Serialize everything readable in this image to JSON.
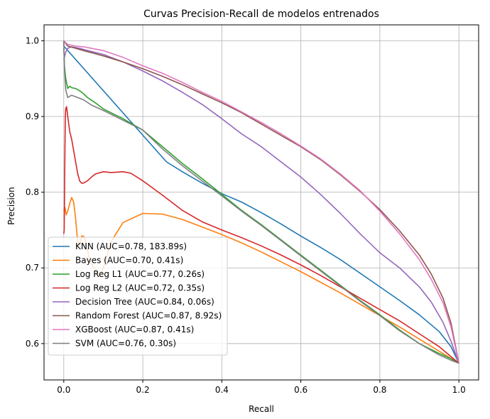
{
  "chart_data": {
    "type": "line",
    "title": "Curvas Precision-Recall de modelos entrenados",
    "xlabel": "Recall",
    "ylabel": "Precision",
    "xlim": [
      -0.05,
      1.05
    ],
    "ylim": [
      0.552,
      1.021
    ],
    "xticks": [
      0.0,
      0.2,
      0.4,
      0.6,
      0.8,
      1.0
    ],
    "xtick_labels": [
      "0.0",
      "0.2",
      "0.4",
      "0.6",
      "0.8",
      "1.0"
    ],
    "yticks": [
      0.6,
      0.7,
      0.8,
      0.9,
      1.0
    ],
    "ytick_labels": [
      "0.6",
      "0.7",
      "0.8",
      "0.9",
      "1.0"
    ],
    "grid": true,
    "legend_position": "lower-left",
    "series": [
      {
        "name": "KNN (AUC=0.78, 183.89s)",
        "color": "#1f77b4",
        "x": [
          0.0,
          0.0,
          0.26,
          0.3,
          0.35,
          0.4,
          0.45,
          0.5,
          0.55,
          0.6,
          0.65,
          0.7,
          0.75,
          0.8,
          0.85,
          0.9,
          0.95,
          0.98,
          1.0
        ],
        "y": [
          1.0,
          0.993,
          0.84,
          0.827,
          0.812,
          0.798,
          0.787,
          0.773,
          0.758,
          0.742,
          0.727,
          0.711,
          0.693,
          0.675,
          0.657,
          0.638,
          0.616,
          0.596,
          0.574
        ]
      },
      {
        "name": "Bayes (AUC=0.70, 0.41s)",
        "color": "#ff7f0e",
        "x": [
          0.0,
          0.003,
          0.006,
          0.01,
          0.015,
          0.02,
          0.025,
          0.03,
          0.035,
          0.04,
          0.045,
          0.05,
          0.055,
          0.06,
          0.065,
          0.07,
          0.08,
          0.09,
          0.1,
          0.12,
          0.15,
          0.2,
          0.25,
          0.3,
          0.35,
          0.4,
          0.45,
          0.5,
          0.55,
          0.6,
          0.65,
          0.7,
          0.75,
          0.8,
          0.85,
          0.9,
          0.95,
          1.0
        ],
        "y": [
          0.775,
          0.78,
          0.77,
          0.775,
          0.785,
          0.793,
          0.787,
          0.765,
          0.735,
          0.73,
          0.742,
          0.742,
          0.736,
          0.723,
          0.712,
          0.705,
          0.698,
          0.688,
          0.7,
          0.735,
          0.76,
          0.772,
          0.771,
          0.764,
          0.754,
          0.744,
          0.733,
          0.721,
          0.708,
          0.695,
          0.681,
          0.667,
          0.652,
          0.637,
          0.622,
          0.606,
          0.59,
          0.574
        ]
      },
      {
        "name": "Log Reg L1 (AUC=0.77, 0.26s)",
        "color": "#2ca02c",
        "x": [
          0.0,
          0.002,
          0.005,
          0.01,
          0.015,
          0.02,
          0.03,
          0.04,
          0.05,
          0.06,
          0.08,
          0.1,
          0.15,
          0.2,
          0.25,
          0.3,
          0.35,
          0.4,
          0.45,
          0.5,
          0.55,
          0.6,
          0.65,
          0.7,
          0.75,
          0.8,
          0.85,
          0.9,
          0.95,
          0.98,
          1.0
        ],
        "y": [
          0.99,
          0.965,
          0.95,
          0.937,
          0.94,
          0.938,
          0.937,
          0.934,
          0.93,
          0.925,
          0.918,
          0.91,
          0.897,
          0.882,
          0.86,
          0.838,
          0.818,
          0.797,
          0.776,
          0.757,
          0.737,
          0.717,
          0.697,
          0.677,
          0.657,
          0.638,
          0.618,
          0.6,
          0.587,
          0.58,
          0.574
        ]
      },
      {
        "name": "Log Reg L2 (AUC=0.72, 0.35s)",
        "color": "#d62728",
        "x": [
          0.0,
          0.001,
          0.002,
          0.003,
          0.004,
          0.005,
          0.007,
          0.01,
          0.015,
          0.02,
          0.025,
          0.03,
          0.035,
          0.04,
          0.045,
          0.05,
          0.06,
          0.07,
          0.08,
          0.1,
          0.12,
          0.15,
          0.17,
          0.2,
          0.25,
          0.3,
          0.35,
          0.4,
          0.45,
          0.5,
          0.55,
          0.6,
          0.65,
          0.7,
          0.75,
          0.8,
          0.85,
          0.9,
          0.95,
          1.0
        ],
        "y": [
          0.745,
          0.75,
          0.8,
          0.86,
          0.9,
          0.91,
          0.913,
          0.9,
          0.88,
          0.87,
          0.855,
          0.84,
          0.825,
          0.815,
          0.812,
          0.812,
          0.815,
          0.82,
          0.824,
          0.827,
          0.826,
          0.827,
          0.825,
          0.815,
          0.796,
          0.776,
          0.761,
          0.75,
          0.74,
          0.729,
          0.717,
          0.704,
          0.69,
          0.675,
          0.66,
          0.645,
          0.63,
          0.613,
          0.596,
          0.574
        ]
      },
      {
        "name": "Decision Tree (AUC=0.84, 0.06s)",
        "color": "#9467bd",
        "x": [
          0.0,
          0.005,
          0.01,
          0.02,
          0.04,
          0.06,
          0.1,
          0.15,
          0.2,
          0.25,
          0.3,
          0.35,
          0.4,
          0.45,
          0.5,
          0.55,
          0.6,
          0.65,
          0.7,
          0.75,
          0.8,
          0.85,
          0.9,
          0.93,
          0.96,
          0.98,
          1.0
        ],
        "y": [
          0.975,
          0.985,
          0.99,
          0.992,
          0.99,
          0.987,
          0.982,
          0.972,
          0.96,
          0.947,
          0.932,
          0.916,
          0.897,
          0.877,
          0.86,
          0.84,
          0.82,
          0.797,
          0.772,
          0.745,
          0.72,
          0.7,
          0.675,
          0.655,
          0.628,
          0.603,
          0.574
        ]
      },
      {
        "name": "Random Forest (AUC=0.87, 8.92s)",
        "color": "#8c564b",
        "x": [
          0.0,
          0.01,
          0.05,
          0.1,
          0.15,
          0.2,
          0.25,
          0.3,
          0.35,
          0.4,
          0.45,
          0.5,
          0.55,
          0.6,
          0.65,
          0.7,
          0.75,
          0.8,
          0.85,
          0.9,
          0.93,
          0.96,
          0.98,
          1.0
        ],
        "y": [
          1.0,
          0.993,
          0.987,
          0.98,
          0.972,
          0.963,
          0.953,
          0.942,
          0.93,
          0.918,
          0.905,
          0.89,
          0.875,
          0.86,
          0.843,
          0.823,
          0.801,
          0.777,
          0.749,
          0.717,
          0.692,
          0.66,
          0.627,
          0.574
        ]
      },
      {
        "name": "XGBoost (AUC=0.87, 0.41s)",
        "color": "#e377c2",
        "x": [
          0.0,
          0.01,
          0.03,
          0.05,
          0.1,
          0.15,
          0.2,
          0.25,
          0.3,
          0.35,
          0.4,
          0.45,
          0.5,
          0.55,
          0.6,
          0.65,
          0.7,
          0.75,
          0.8,
          0.85,
          0.9,
          0.93,
          0.96,
          0.98,
          1.0
        ],
        "y": [
          1.0,
          0.995,
          0.993,
          0.992,
          0.987,
          0.978,
          0.967,
          0.957,
          0.945,
          0.932,
          0.92,
          0.906,
          0.892,
          0.877,
          0.861,
          0.844,
          0.824,
          0.802,
          0.775,
          0.745,
          0.711,
          0.685,
          0.654,
          0.622,
          0.574
        ]
      },
      {
        "name": "SVM (AUC=0.76, 0.30s)",
        "color": "#7f7f7f",
        "x": [
          0.0,
          0.002,
          0.005,
          0.01,
          0.02,
          0.03,
          0.05,
          0.07,
          0.1,
          0.15,
          0.2,
          0.25,
          0.3,
          0.35,
          0.4,
          0.45,
          0.5,
          0.55,
          0.6,
          0.65,
          0.7,
          0.75,
          0.8,
          0.85,
          0.9,
          0.95,
          0.98,
          1.0
        ],
        "y": [
          1.0,
          0.96,
          0.935,
          0.925,
          0.928,
          0.926,
          0.922,
          0.915,
          0.908,
          0.895,
          0.882,
          0.857,
          0.835,
          0.815,
          0.795,
          0.775,
          0.756,
          0.736,
          0.716,
          0.696,
          0.676,
          0.656,
          0.637,
          0.617,
          0.6,
          0.585,
          0.578,
          0.574
        ]
      }
    ]
  }
}
